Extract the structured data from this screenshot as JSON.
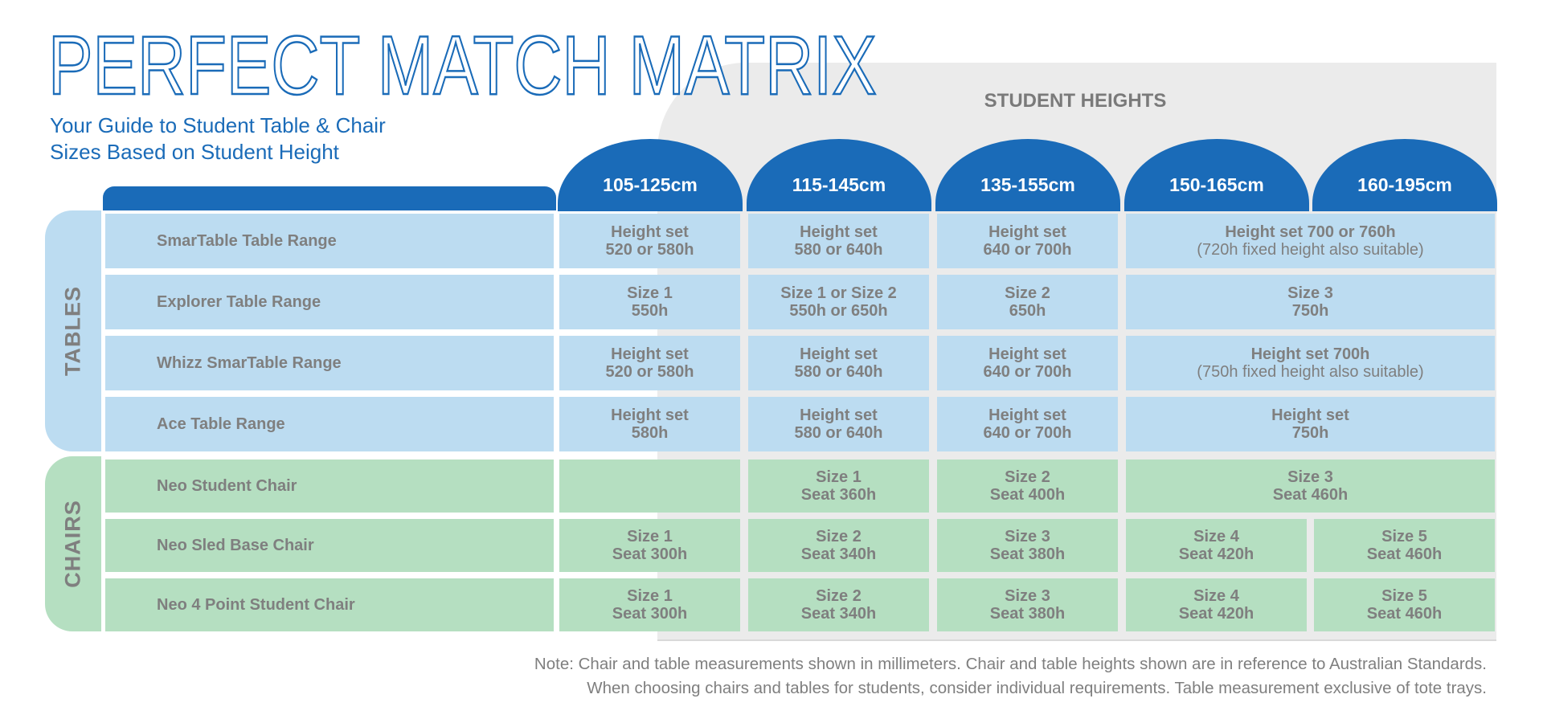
{
  "title": "PERFECT MATCH MATRIX",
  "subtitle_lines": [
    "Your Guide to Student Table & Chair",
    "Sizes Based on Student Height"
  ],
  "heights_title": "STUDENT HEIGHTS",
  "columns": [
    "105-125cm",
    "115-145cm",
    "135-155cm",
    "150-165cm",
    "160-195cm"
  ],
  "groups": {
    "tables": "TABLES",
    "chairs": "CHAIRS"
  },
  "rows": [
    {
      "name": "SmarTable Table Range",
      "cells": [
        [
          "Height set",
          "520 or 580h"
        ],
        [
          "Height set",
          "580 or 640h"
        ],
        [
          "Height set",
          "640 or 700h"
        ],
        [
          "Height set 700 or 760h",
          "(720h fixed height also suitable)"
        ]
      ]
    },
    {
      "name": "Explorer Table Range",
      "cells": [
        [
          "Size 1",
          "550h"
        ],
        [
          "Size 1 or Size 2",
          "550h or 650h"
        ],
        [
          "Size 2",
          "650h"
        ],
        [
          "Size 3",
          "750h"
        ]
      ]
    },
    {
      "name": "Whizz SmarTable Range",
      "cells": [
        [
          "Height set",
          "520 or 580h"
        ],
        [
          "Height set",
          "580 or 640h"
        ],
        [
          "Height set",
          "640 or 700h"
        ],
        [
          "Height set 700h",
          "(750h fixed height also suitable)"
        ]
      ]
    },
    {
      "name": "Ace Table Range",
      "cells": [
        [
          "Height set",
          "580h"
        ],
        [
          "Height set",
          "580 or 640h"
        ],
        [
          "Height set",
          "640 or 700h"
        ],
        [
          "Height set",
          "750h"
        ]
      ]
    },
    {
      "name": "Neo Student Chair",
      "cells": [
        [
          "",
          ""
        ],
        [
          "Size 1",
          "Seat 360h"
        ],
        [
          "Size 2",
          "Seat 400h"
        ],
        [
          "Size 3",
          "Seat 460h"
        ]
      ]
    },
    {
      "name": "Neo Sled Base Chair",
      "cells": [
        [
          "Size 1",
          "Seat 300h"
        ],
        [
          "Size 2",
          "Seat 340h"
        ],
        [
          "Size 3",
          "Seat 380h"
        ],
        [
          "Size 4",
          "Seat 420h"
        ],
        [
          "Size 5",
          "Seat 460h"
        ]
      ]
    },
    {
      "name": "Neo 4 Point Student Chair",
      "cells": [
        [
          "Size 1",
          "Seat 300h"
        ],
        [
          "Size 2",
          "Seat 340h"
        ],
        [
          "Size 3",
          "Seat 380h"
        ],
        [
          "Size 4",
          "Seat 420h"
        ],
        [
          "Size 5",
          "Seat 460h"
        ]
      ]
    }
  ],
  "note_lines": [
    "Note: Chair and table measurements shown in millimeters. Chair and table heights shown are in reference to Australian Standards.",
    "When choosing chairs and tables for students, consider individual requirements. Table measurement exclusive of tote trays."
  ],
  "colors": {
    "brand_blue": "#1a6bb8",
    "table_fill": "#bcdcf1",
    "chair_fill": "#b5dfc1",
    "text_grey": "#7f7f7f",
    "backdrop_grey": "#ebebeb"
  }
}
